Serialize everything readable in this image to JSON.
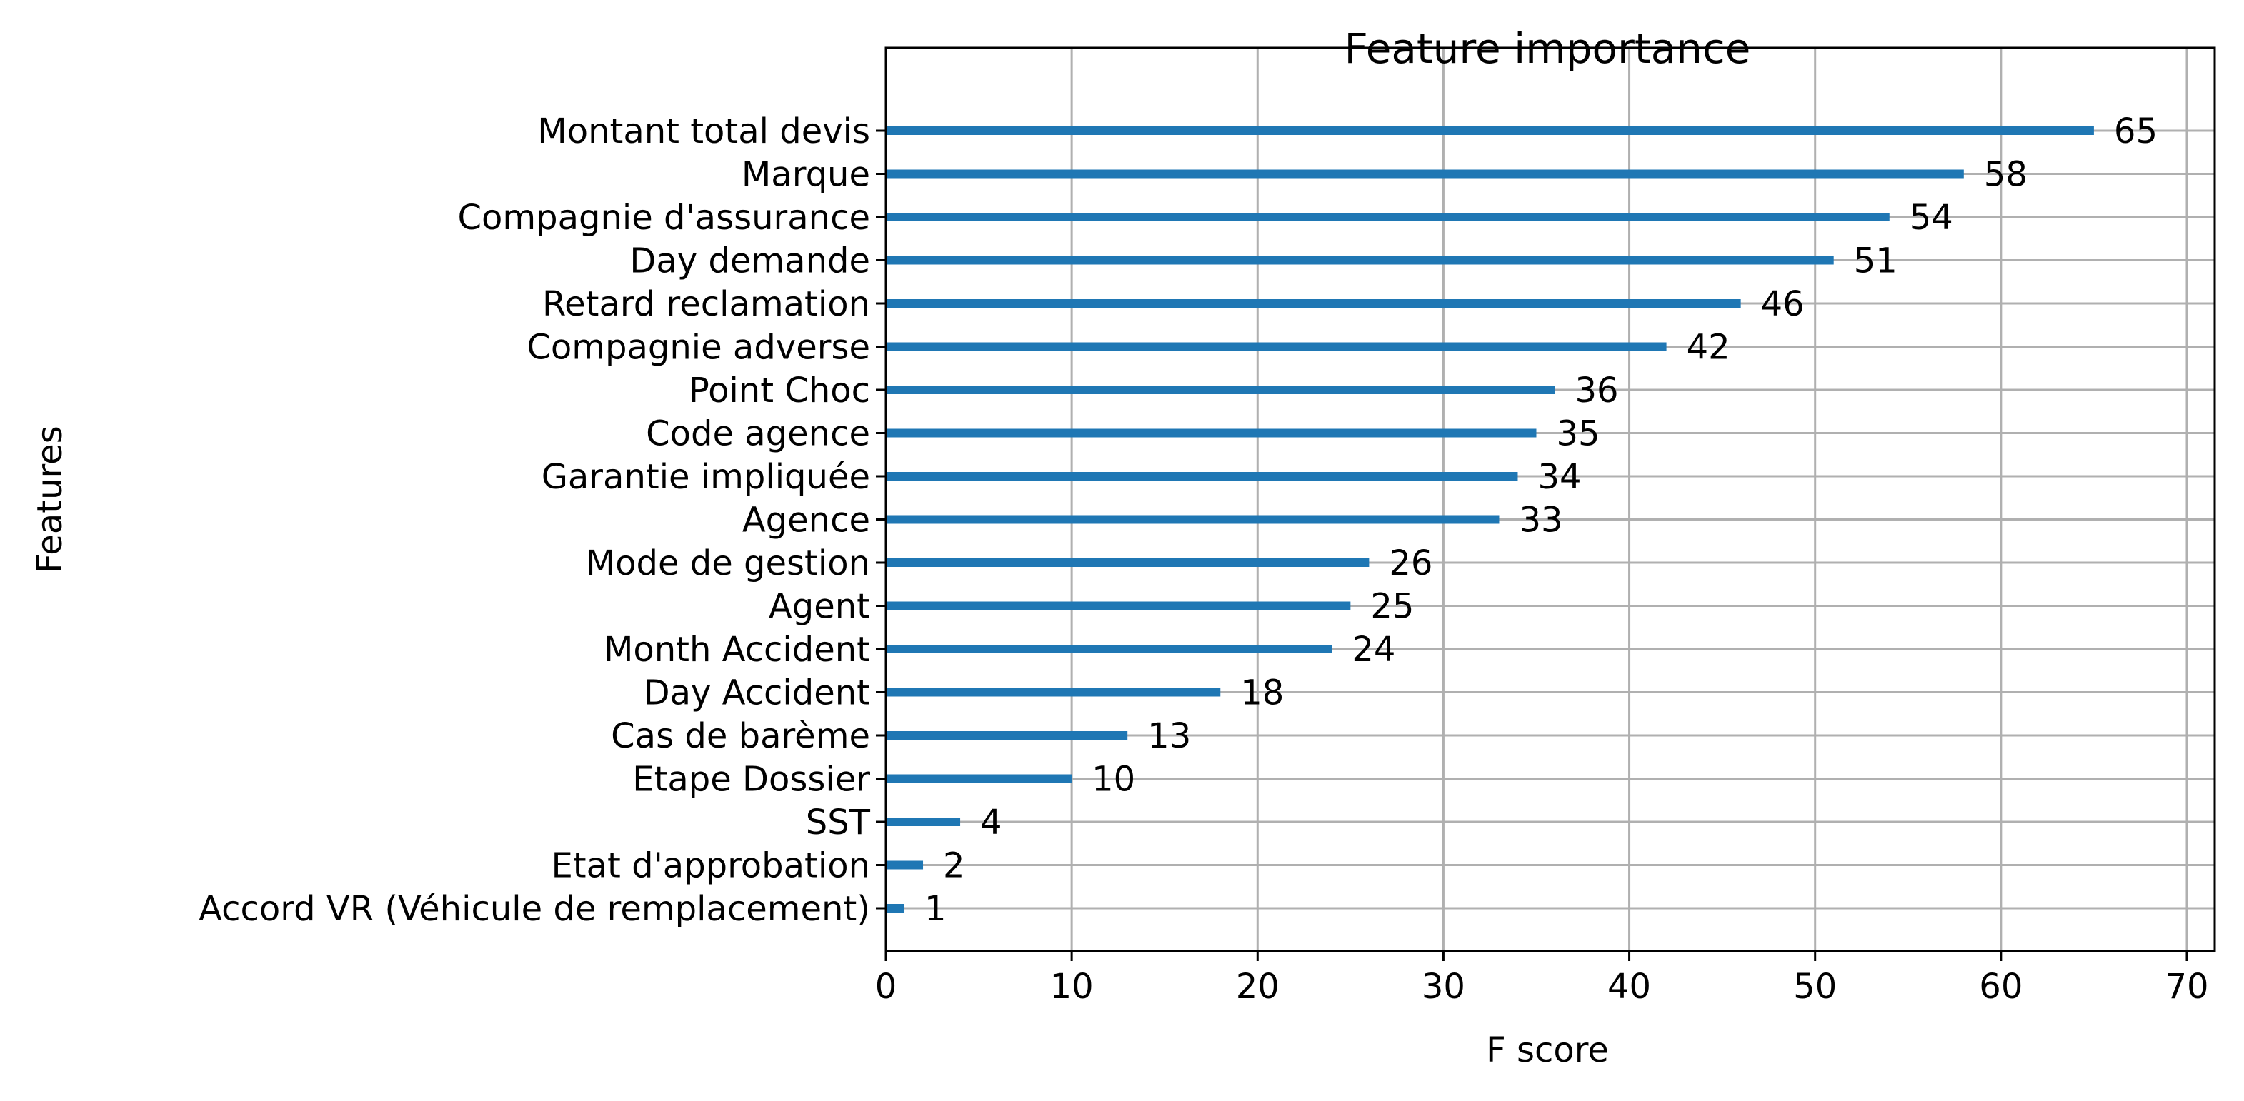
{
  "chart_data": {
    "type": "bar",
    "orientation": "horizontal",
    "title": "Feature importance",
    "xlabel": "F score",
    "ylabel": "Features",
    "xlim": [
      0,
      71.5
    ],
    "xticks": [
      0,
      10,
      20,
      30,
      40,
      50,
      60,
      70
    ],
    "grid": true,
    "bar_color": "#1f77b4",
    "categories": [
      "Accord VR (Véhicule de remplacement)",
      "Etat d'approbation",
      "SST",
      "Etape Dossier",
      "Cas de barème",
      "Day Accident",
      "Month Accident",
      "Agent",
      "Mode de gestion",
      "Agence",
      "Garantie impliquée",
      "Code agence",
      "Point Choc",
      "Compagnie adverse",
      "Retard reclamation",
      "Day demande",
      "Compagnie d'assurance",
      "Marque",
      "Montant total devis"
    ],
    "values": [
      1,
      2,
      4,
      10,
      13,
      18,
      24,
      25,
      26,
      33,
      34,
      35,
      36,
      42,
      46,
      51,
      54,
      58,
      65
    ]
  }
}
